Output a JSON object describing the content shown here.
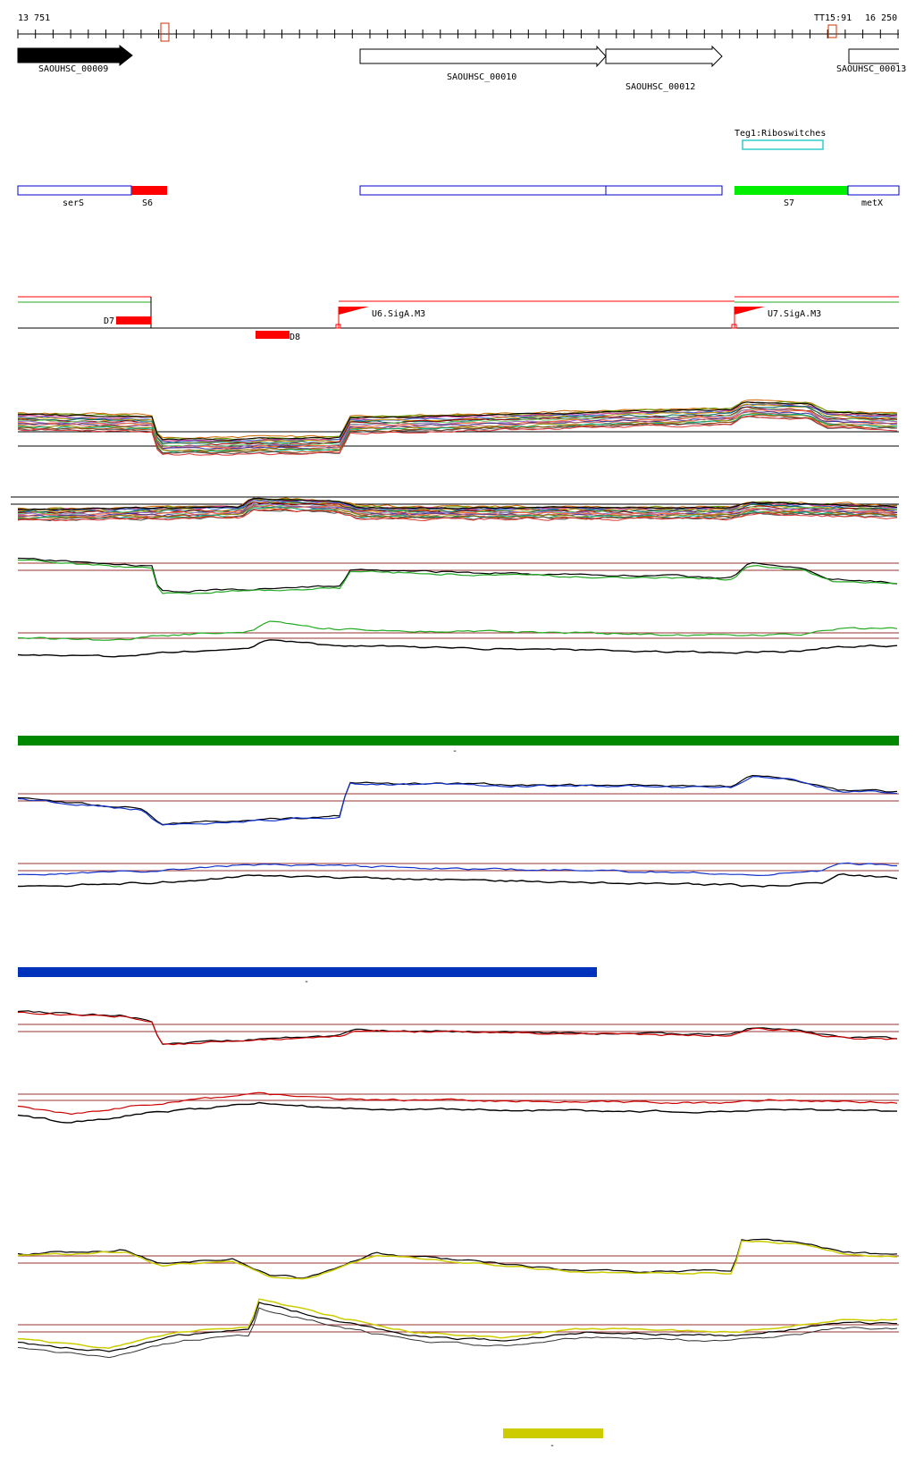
{
  "ruler": {
    "start_label": "13 751",
    "end_label": "16 250",
    "marker_label": "TT15:91"
  },
  "genes": [
    {
      "id": "SAOUHSC_00009",
      "label": "SAOUHSC_00009",
      "strand": "+",
      "fill": "#000000"
    },
    {
      "id": "SAOUHSC_00010",
      "label": "SAOUHSC_00010",
      "strand": "+",
      "fill": "#ffffff"
    },
    {
      "id": "SAOUHSC_00012",
      "label": "SAOUHSC_00012",
      "strand": "+",
      "fill": "#ffffff"
    },
    {
      "id": "SAOUHSC_00013",
      "label": "SAOUHSC_00013",
      "strand": "+",
      "fill": "#ffffff"
    }
  ],
  "riboswitch": {
    "label": "Teg1:Riboswitches",
    "color": "#33cccc"
  },
  "segments": [
    {
      "label": "serS",
      "color": "#0000cc"
    },
    {
      "label": "S6",
      "color": "#ff0000"
    },
    {
      "label": "S7",
      "color": "#00ee00"
    },
    {
      "label": "metX",
      "color": "#0000cc"
    }
  ],
  "promoters": {
    "upstream": [
      {
        "label": "U6.SigA.M3"
      },
      {
        "label": "U7.SigA.M3"
      }
    ],
    "downstream": [
      {
        "label": "D7"
      },
      {
        "label": "D8"
      }
    ]
  },
  "condition_bars": [
    {
      "color": "#008800",
      "label": "-"
    },
    {
      "color": "#0033bb",
      "label": "-"
    },
    {
      "color": "#cccc00",
      "label": "-"
    }
  ],
  "colors": {
    "cond_green": "#22aa22",
    "cond_blue": "#1133cc",
    "cond_red": "#cc0000",
    "cond_yellow": "#cccc00",
    "threshold": "#993333",
    "promoter": "#ff0000"
  }
}
